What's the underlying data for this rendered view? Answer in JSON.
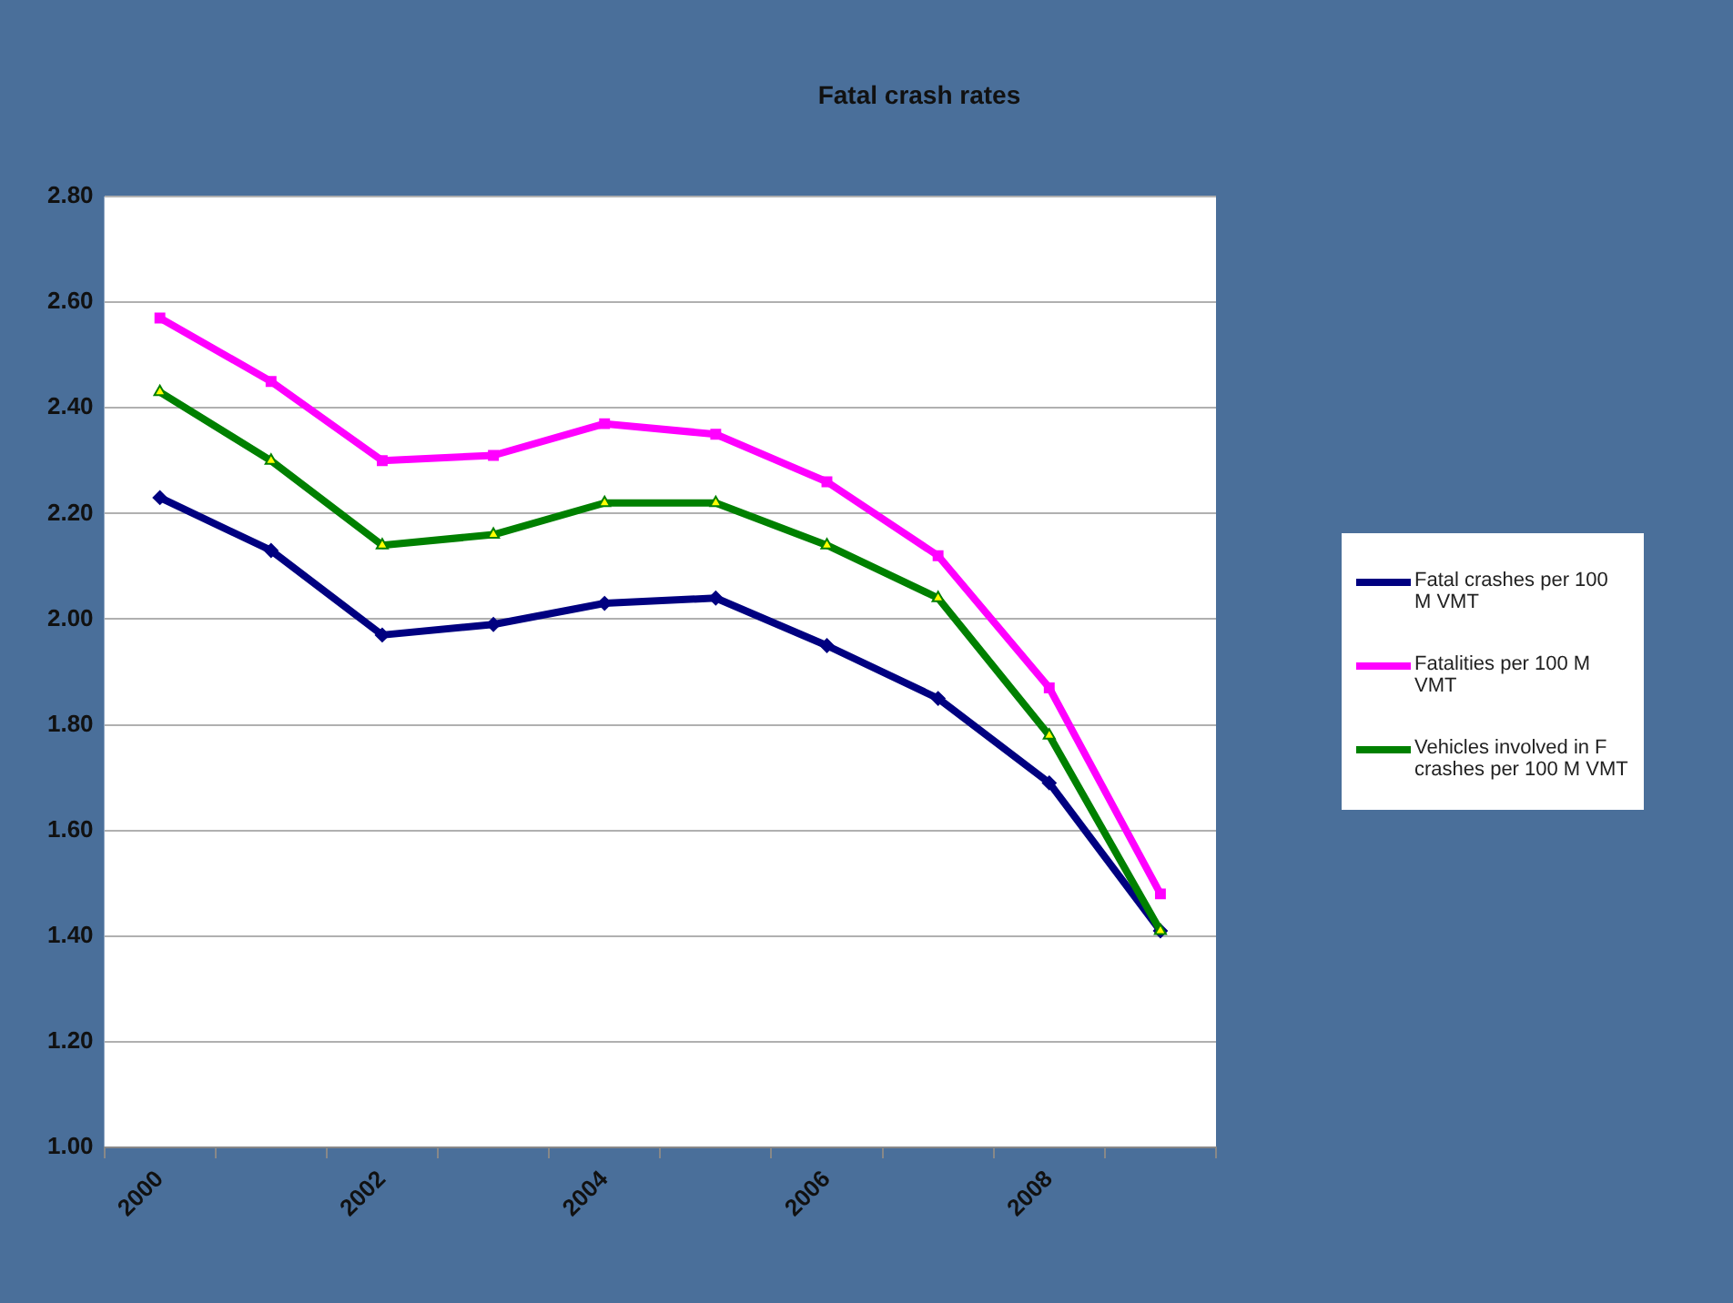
{
  "chart_data": {
    "type": "line",
    "title": "Fatal crash rates",
    "categories": [
      "2000",
      null,
      "2002",
      null,
      "2004",
      null,
      "2006",
      null,
      "2008",
      null
    ],
    "series": [
      {
        "name": "Fatal crashes per 100 M VMT",
        "color": "#000080",
        "marker": "diamond",
        "values": [
          2.23,
          2.13,
          1.97,
          1.99,
          2.03,
          2.04,
          1.95,
          1.85,
          1.69,
          1.41
        ]
      },
      {
        "name": "Fatalities per 100 M VMT",
        "color": "#ff00ff",
        "marker": "square",
        "values": [
          2.57,
          2.45,
          2.3,
          2.31,
          2.37,
          2.35,
          2.26,
          2.12,
          1.87,
          1.48
        ]
      },
      {
        "name": "Vehicles involved in F crashes per 100 M VMT",
        "color": "#008000",
        "marker": "triangle",
        "values": [
          2.43,
          2.3,
          2.14,
          2.16,
          2.22,
          2.22,
          2.14,
          2.04,
          1.78,
          1.41
        ]
      }
    ],
    "ylim": [
      1.0,
      2.8
    ],
    "yticks": [
      {
        "value": 1.0,
        "label": "1.00"
      },
      {
        "value": 1.2,
        "label": "1.20"
      },
      {
        "value": 1.4,
        "label": "1.40"
      },
      {
        "value": 1.6,
        "label": "1.60"
      },
      {
        "value": 1.8,
        "label": "1.80"
      },
      {
        "value": 2.0,
        "label": "2.00"
      },
      {
        "value": 2.2,
        "label": "2.20"
      },
      {
        "value": 2.4,
        "label": "2.40"
      },
      {
        "value": 2.6,
        "label": "2.60"
      },
      {
        "value": 2.8,
        "label": "2.80"
      }
    ],
    "grid": "y",
    "legend": "right",
    "line_style": "solid"
  }
}
